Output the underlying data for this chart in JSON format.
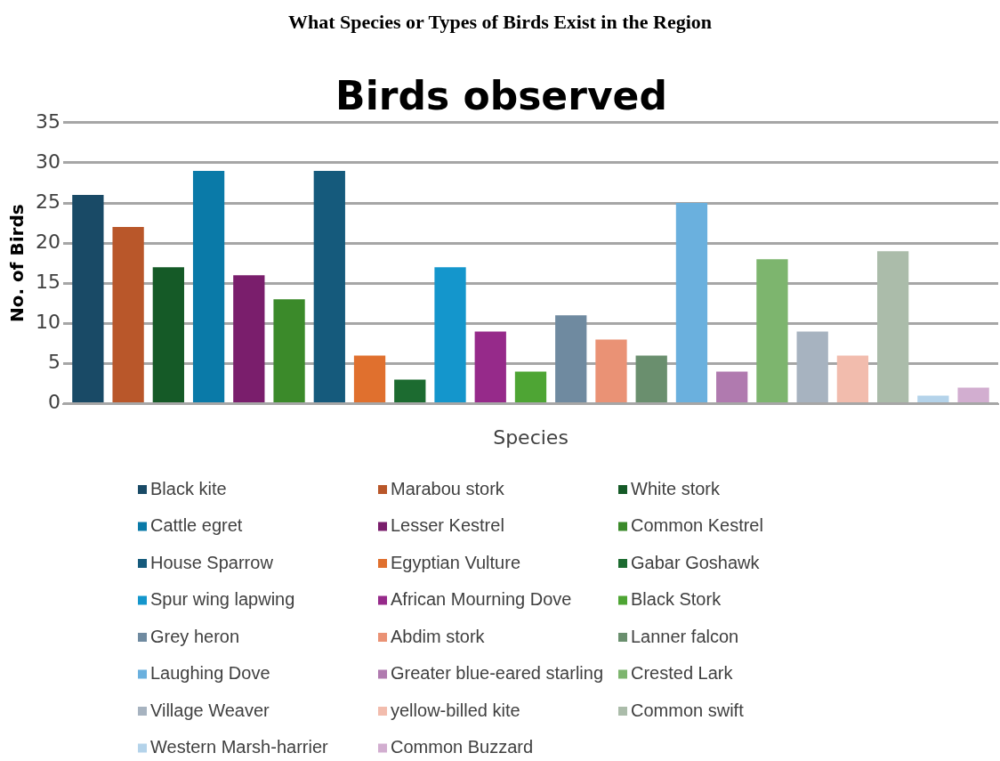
{
  "chart_data": {
    "type": "bar",
    "title": "What Species or Types of Birds Exist in the Region",
    "subtitle": "Birds observed",
    "xlabel": "Species",
    "ylabel": "No. of Birds",
    "categories": [
      null
    ],
    "series": [
      {
        "name": "Black kite",
        "color": "#194a66",
        "values": [
          26
        ]
      },
      {
        "name": "Marabou stork",
        "color": "#b9572a",
        "values": [
          22
        ]
      },
      {
        "name": "White stork",
        "color": "#155a27",
        "values": [
          17
        ]
      },
      {
        "name": "Cattle egret",
        "color": "#0a7aa8",
        "values": [
          29
        ]
      },
      {
        "name": "Lesser Kestrel",
        "color": "#7a1e6c",
        "values": [
          16
        ]
      },
      {
        "name": "Common Kestrel",
        "color": "#3b8a2a",
        "values": [
          13
        ]
      },
      {
        "name": "House Sparrow",
        "color": "#155a7c",
        "values": [
          29
        ]
      },
      {
        "name": "Egyptian Vulture",
        "color": "#e0702e",
        "values": [
          6
        ]
      },
      {
        "name": "Gabar Goshawk",
        "color": "#1c6b30",
        "values": [
          3
        ]
      },
      {
        "name": "Spur wing lapwing",
        "color": "#1496cc",
        "values": [
          17
        ]
      },
      {
        "name": "African Mourning Dove",
        "color": "#962a8a",
        "values": [
          9
        ]
      },
      {
        "name": "Black Stork",
        "color": "#4ea534",
        "values": [
          4
        ]
      },
      {
        "name": "Grey heron",
        "color": "#6f8aa0",
        "values": [
          11
        ]
      },
      {
        "name": "Abdim stork",
        "color": "#ea9275",
        "values": [
          8
        ]
      },
      {
        "name": "Lanner falcon",
        "color": "#6a8f6e",
        "values": [
          6
        ]
      },
      {
        "name": "Laughing Dove",
        "color": "#6ab0de",
        "values": [
          25
        ]
      },
      {
        "name": "Greater blue-eared starling",
        "color": "#b07aaf",
        "values": [
          4
        ]
      },
      {
        "name": "Crested Lark",
        "color": "#7db56e",
        "values": [
          18
        ]
      },
      {
        "name": "Village Weaver",
        "color": "#a7b3c0",
        "values": [
          9
        ]
      },
      {
        "name": "yellow-billed kite",
        "color": "#f2bcad",
        "values": [
          6
        ]
      },
      {
        "name": "Common swift",
        "color": "#abbcaa",
        "values": [
          19
        ]
      },
      {
        "name": "Western Marsh-harrier",
        "color": "#b4d3ea",
        "values": [
          1
        ]
      },
      {
        "name": "Common Buzzard",
        "color": "#d2aed0",
        "values": [
          2
        ]
      }
    ],
    "ylim": [
      0,
      35
    ],
    "yticks": [
      0,
      5,
      10,
      15,
      20,
      25,
      30,
      35
    ],
    "grid": "y",
    "legend": "bottom"
  }
}
